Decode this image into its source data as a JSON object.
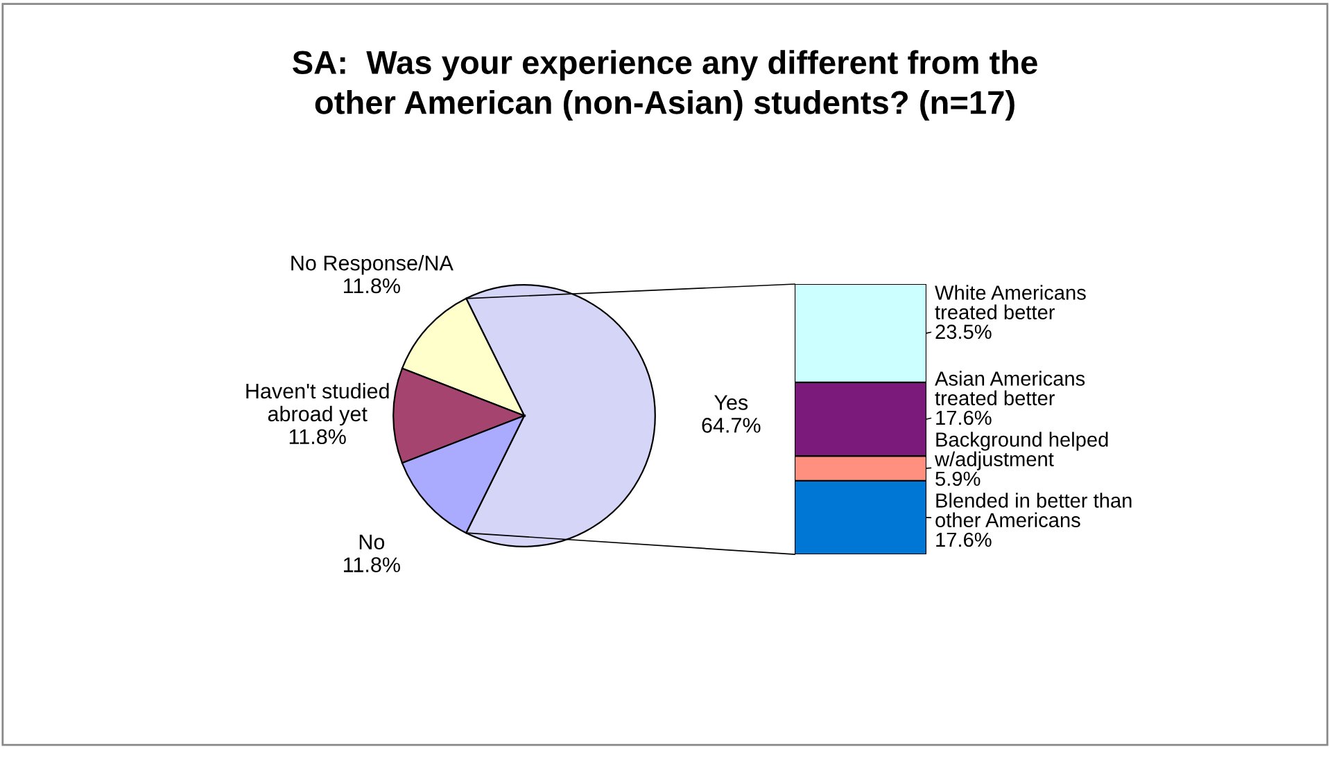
{
  "chart_data": [
    {
      "type": "pie",
      "title": "SA:  Was your experience any different from the\nother American (non-Asian) students? (n=17)",
      "categories": [
        "Yes",
        "No Response/NA",
        "Haven't studied\nabroad yet",
        "No"
      ],
      "values": [
        64.7,
        11.8,
        11.8,
        11.8
      ],
      "value_labels": [
        "64.7%",
        "11.8%",
        "11.8%",
        "11.8%"
      ],
      "colors": [
        "#d5d5f8",
        "#ffffcc",
        "#a5456f",
        "#aaaaff"
      ]
    },
    {
      "type": "bar",
      "stacked": true,
      "legend": "right",
      "categories": [
        null
      ],
      "series": [
        {
          "name": "Blended in better than\nother Americans",
          "color": "#0077d4",
          "values": [
            17.6
          ],
          "value_labels": [
            "17.6%"
          ]
        },
        {
          "name": "Background helped\nw/adjustment",
          "color": "#ff9080",
          "values": [
            5.9
          ],
          "value_labels": [
            "5.9%"
          ]
        },
        {
          "name": "Asian Americans\ntreated better",
          "color": "#7b1a7b",
          "values": [
            17.6
          ],
          "value_labels": [
            "17.6%"
          ]
        },
        {
          "name": "White Americans\ntreated better",
          "color": "#ccffff",
          "values": [
            23.5
          ],
          "value_labels": [
            "23.5%"
          ]
        }
      ]
    }
  ]
}
